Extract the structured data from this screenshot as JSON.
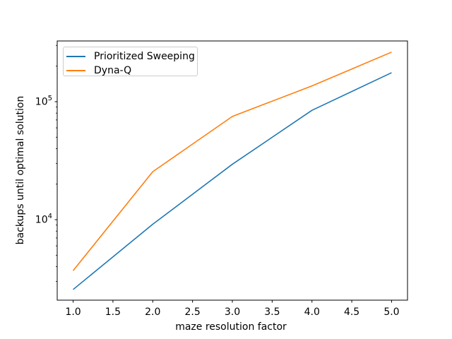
{
  "chart_data": {
    "type": "line",
    "title": "",
    "xlabel": "maze resolution factor",
    "ylabel": "backups until optimal solution",
    "yscale": "log",
    "grid": false,
    "xlim": [
      0.8,
      5.2
    ],
    "ylim": [
      2080,
      327000
    ],
    "x": [
      1.0,
      2.0,
      3.0,
      4.0,
      5.0
    ],
    "series": [
      {
        "name": "Prioritized Sweeping",
        "color": "#1f77b4",
        "values": [
          2560,
          9150,
          29500,
          84500,
          176000
        ]
      },
      {
        "name": "Dyna-Q",
        "color": "#ff7f0e",
        "values": [
          3700,
          25500,
          75000,
          136000,
          263000
        ]
      }
    ],
    "x_ticks": [
      1.0,
      1.5,
      2.0,
      2.5,
      3.0,
      3.5,
      4.0,
      4.5,
      5.0
    ],
    "x_tick_labels": [
      "1.0",
      "1.5",
      "2.0",
      "2.5",
      "3.0",
      "3.5",
      "4.0",
      "4.5",
      "5.0"
    ],
    "y_major_ticks": [
      10000,
      100000
    ],
    "legend": {
      "position": "upper left"
    },
    "axis_color": "#000000",
    "background": "#ffffff"
  }
}
